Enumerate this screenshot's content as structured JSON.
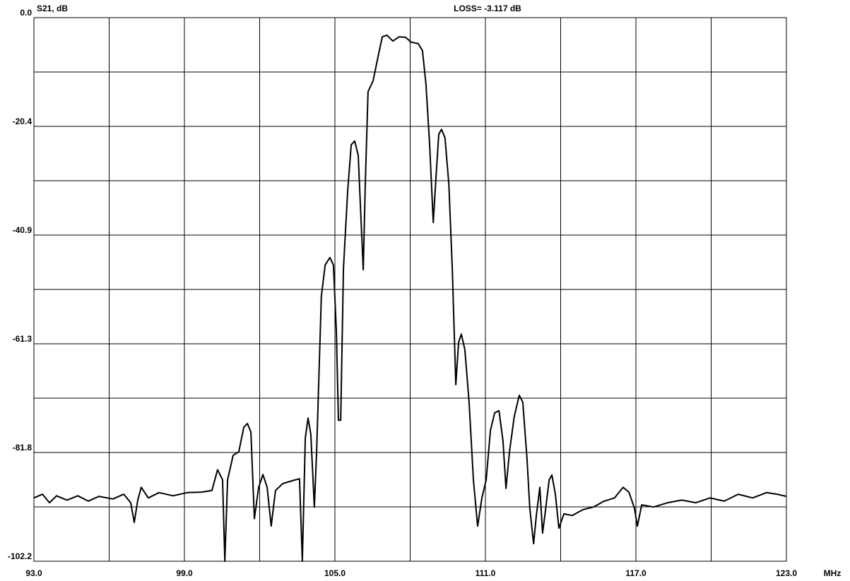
{
  "chart_data": {
    "type": "line",
    "y_label": "S21, dB",
    "annotation": "LOSS=  -3.117 dB",
    "x_label": "MHz",
    "color": "#000000",
    "grid": true,
    "xlim": [
      93,
      123
    ],
    "ylim": [
      -102.2,
      0
    ],
    "xticks": [
      {
        "value": 93,
        "label": "93.0"
      },
      {
        "value": 99,
        "label": "99.0"
      },
      {
        "value": 105,
        "label": "105.0"
      },
      {
        "value": 111,
        "label": "111.0"
      },
      {
        "value": 117,
        "label": "117.0"
      },
      {
        "value": 123,
        "label": "123.0"
      }
    ],
    "xminorticks": [
      96,
      102,
      108,
      114,
      120
    ],
    "yticks": [
      {
        "value": 0,
        "label": "0.0"
      },
      {
        "value": -20.44,
        "label": "-20.4"
      },
      {
        "value": -40.88,
        "label": "-40.9"
      },
      {
        "value": -61.32,
        "label": "-61.3"
      },
      {
        "value": -81.76,
        "label": "-81.8"
      },
      {
        "value": -102.2,
        "label": "-102.2"
      }
    ],
    "yminorticks": [
      -10.22,
      -30.66,
      -51.1,
      -71.54,
      -91.98
    ],
    "x": [
      93.0,
      93.34,
      93.62,
      93.9,
      94.32,
      94.75,
      95.17,
      95.59,
      96.15,
      96.58,
      96.86,
      97.0,
      97.14,
      97.28,
      97.56,
      97.99,
      98.55,
      99.11,
      99.68,
      100.1,
      100.32,
      100.52,
      100.61,
      100.72,
      100.94,
      101.17,
      101.37,
      101.51,
      101.65,
      101.79,
      101.96,
      102.13,
      102.3,
      102.46,
      102.63,
      102.92,
      103.34,
      103.59,
      103.7,
      103.82,
      103.93,
      104.04,
      104.18,
      104.27,
      104.46,
      104.61,
      104.8,
      104.94,
      105.06,
      105.14,
      105.23,
      105.34,
      105.51,
      105.65,
      105.79,
      105.93,
      106.04,
      106.13,
      106.21,
      106.32,
      106.52,
      106.72,
      106.89,
      107.08,
      107.31,
      107.56,
      107.82,
      108.04,
      108.32,
      108.49,
      108.63,
      108.77,
      108.92,
      109.03,
      109.14,
      109.25,
      109.39,
      109.54,
      109.68,
      109.82,
      109.93,
      110.04,
      110.18,
      110.35,
      110.52,
      110.69,
      110.86,
      111.03,
      111.2,
      111.37,
      111.54,
      111.7,
      111.82,
      111.96,
      112.15,
      112.35,
      112.49,
      112.66,
      112.77,
      112.92,
      113.03,
      113.17,
      113.28,
      113.39,
      113.54,
      113.65,
      113.79,
      113.93,
      114.13,
      114.46,
      114.89,
      115.31,
      115.73,
      116.15,
      116.49,
      116.72,
      116.94,
      117.06,
      117.23,
      117.7,
      118.27,
      118.83,
      119.39,
      119.96,
      120.52,
      121.08,
      121.65,
      122.21,
      122.63,
      123.0
    ],
    "values": [
      -90.3,
      -89.6,
      -91.2,
      -89.9,
      -90.7,
      -89.9,
      -90.9,
      -90.0,
      -90.5,
      -89.6,
      -91.2,
      -94.9,
      -90.7,
      -88.3,
      -90.3,
      -89.3,
      -89.9,
      -89.3,
      -89.2,
      -88.9,
      -85.0,
      -86.9,
      -102.2,
      -86.9,
      -82.3,
      -81.6,
      -77.0,
      -76.3,
      -77.9,
      -94.2,
      -88.3,
      -85.9,
      -88.3,
      -95.6,
      -88.9,
      -87.6,
      -87.0,
      -86.7,
      -102.2,
      -79.0,
      -75.3,
      -78.3,
      -92.0,
      -81.6,
      -52.4,
      -46.5,
      -45.1,
      -46.5,
      -59.1,
      -75.7,
      -75.7,
      -47.1,
      -32.5,
      -23.9,
      -23.2,
      -25.9,
      -37.8,
      -47.4,
      -31.2,
      -13.9,
      -11.9,
      -7.3,
      -3.6,
      -3.3,
      -4.4,
      -3.6,
      -3.7,
      -4.6,
      -4.9,
      -6.2,
      -12.6,
      -23.2,
      -38.5,
      -29.9,
      -21.9,
      -21.0,
      -22.6,
      -31.2,
      -47.1,
      -69.0,
      -61.1,
      -59.5,
      -62.4,
      -72.3,
      -86.9,
      -95.6,
      -90.3,
      -86.9,
      -77.6,
      -74.3,
      -73.9,
      -79.6,
      -88.5,
      -81.6,
      -75.0,
      -71.0,
      -72.3,
      -83.0,
      -92.2,
      -98.9,
      -93.6,
      -88.3,
      -96.9,
      -92.9,
      -86.9,
      -86.0,
      -89.6,
      -96.0,
      -93.3,
      -93.6,
      -92.5,
      -92.0,
      -90.9,
      -90.3,
      -88.3,
      -89.2,
      -92.2,
      -95.6,
      -91.6,
      -92.0,
      -91.2,
      -90.7,
      -91.2,
      -90.3,
      -90.9,
      -89.6,
      -90.3,
      -89.3,
      -89.6,
      -90.0
    ]
  }
}
